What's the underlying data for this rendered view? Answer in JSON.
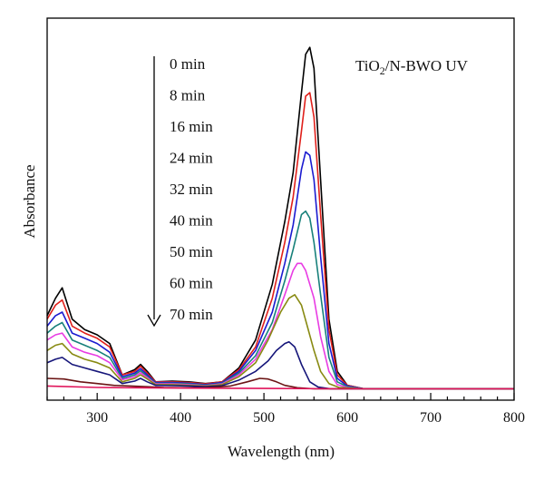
{
  "chart_data": {
    "type": "line",
    "title": "",
    "xlabel": "Wavelength (nm)",
    "ylabel": "Absorbance",
    "xlim": [
      240,
      800
    ],
    "ylim": [
      0,
      1
    ],
    "xticks": [
      300,
      400,
      500,
      600,
      700,
      800
    ],
    "x_minor_step": 20,
    "y_tick_labels": false,
    "grid": false,
    "annotation": {
      "base": "TiO",
      "sub": "2",
      "rest": "/N-BWO UV"
    },
    "legend_position": "top-center, with arrow pointing down",
    "series": [
      {
        "name": "0 min",
        "color": "#000000",
        "values": [
          [
            240,
            0.21
          ],
          [
            250,
            0.26
          ],
          [
            258,
            0.29
          ],
          [
            270,
            0.2
          ],
          [
            285,
            0.17
          ],
          [
            300,
            0.155
          ],
          [
            315,
            0.13
          ],
          [
            330,
            0.04
          ],
          [
            345,
            0.055
          ],
          [
            352,
            0.07
          ],
          [
            360,
            0.05
          ],
          [
            370,
            0.02
          ],
          [
            390,
            0.022
          ],
          [
            410,
            0.02
          ],
          [
            430,
            0.015
          ],
          [
            450,
            0.02
          ],
          [
            470,
            0.06
          ],
          [
            490,
            0.14
          ],
          [
            510,
            0.3
          ],
          [
            525,
            0.48
          ],
          [
            535,
            0.62
          ],
          [
            545,
            0.85
          ],
          [
            550,
            0.96
          ],
          [
            555,
            0.98
          ],
          [
            560,
            0.92
          ],
          [
            568,
            0.6
          ],
          [
            578,
            0.2
          ],
          [
            588,
            0.05
          ],
          [
            600,
            0.01
          ],
          [
            620,
            0.0
          ],
          [
            700,
            0.0
          ],
          [
            800,
            0.0
          ]
        ]
      },
      {
        "name": "8 min",
        "color": "#e0201b",
        "values": [
          [
            240,
            0.2
          ],
          [
            250,
            0.24
          ],
          [
            258,
            0.255
          ],
          [
            270,
            0.18
          ],
          [
            285,
            0.16
          ],
          [
            300,
            0.145
          ],
          [
            315,
            0.12
          ],
          [
            330,
            0.04
          ],
          [
            345,
            0.05
          ],
          [
            352,
            0.065
          ],
          [
            360,
            0.045
          ],
          [
            370,
            0.02
          ],
          [
            390,
            0.02
          ],
          [
            410,
            0.018
          ],
          [
            430,
            0.014
          ],
          [
            450,
            0.02
          ],
          [
            470,
            0.055
          ],
          [
            490,
            0.12
          ],
          [
            510,
            0.26
          ],
          [
            525,
            0.42
          ],
          [
            535,
            0.55
          ],
          [
            545,
            0.74
          ],
          [
            550,
            0.84
          ],
          [
            555,
            0.85
          ],
          [
            560,
            0.78
          ],
          [
            568,
            0.5
          ],
          [
            578,
            0.17
          ],
          [
            588,
            0.04
          ],
          [
            600,
            0.01
          ],
          [
            620,
            0.0
          ],
          [
            700,
            0.0
          ],
          [
            800,
            0.0
          ]
        ]
      },
      {
        "name": "16 min",
        "color": "#1b1bd0",
        "values": [
          [
            240,
            0.18
          ],
          [
            250,
            0.21
          ],
          [
            258,
            0.22
          ],
          [
            270,
            0.16
          ],
          [
            285,
            0.145
          ],
          [
            300,
            0.13
          ],
          [
            315,
            0.105
          ],
          [
            330,
            0.035
          ],
          [
            345,
            0.045
          ],
          [
            352,
            0.058
          ],
          [
            360,
            0.04
          ],
          [
            370,
            0.018
          ],
          [
            390,
            0.018
          ],
          [
            410,
            0.016
          ],
          [
            430,
            0.012
          ],
          [
            450,
            0.018
          ],
          [
            470,
            0.05
          ],
          [
            490,
            0.11
          ],
          [
            510,
            0.22
          ],
          [
            525,
            0.36
          ],
          [
            535,
            0.47
          ],
          [
            545,
            0.63
          ],
          [
            550,
            0.68
          ],
          [
            555,
            0.67
          ],
          [
            560,
            0.6
          ],
          [
            568,
            0.38
          ],
          [
            578,
            0.13
          ],
          [
            588,
            0.03
          ],
          [
            600,
            0.008
          ],
          [
            620,
            0.0
          ],
          [
            700,
            0.0
          ],
          [
            800,
            0.0
          ]
        ]
      },
      {
        "name": "24 min",
        "color": "#17807a",
        "values": [
          [
            240,
            0.16
          ],
          [
            250,
            0.18
          ],
          [
            258,
            0.19
          ],
          [
            270,
            0.14
          ],
          [
            285,
            0.125
          ],
          [
            300,
            0.11
          ],
          [
            315,
            0.09
          ],
          [
            330,
            0.03
          ],
          [
            345,
            0.04
          ],
          [
            352,
            0.052
          ],
          [
            360,
            0.036
          ],
          [
            370,
            0.016
          ],
          [
            390,
            0.016
          ],
          [
            410,
            0.014
          ],
          [
            430,
            0.01
          ],
          [
            450,
            0.016
          ],
          [
            470,
            0.045
          ],
          [
            490,
            0.095
          ],
          [
            510,
            0.19
          ],
          [
            525,
            0.31
          ],
          [
            535,
            0.4
          ],
          [
            545,
            0.5
          ],
          [
            550,
            0.51
          ],
          [
            555,
            0.49
          ],
          [
            560,
            0.42
          ],
          [
            568,
            0.27
          ],
          [
            578,
            0.09
          ],
          [
            588,
            0.02
          ],
          [
            600,
            0.006
          ],
          [
            620,
            0.0
          ],
          [
            700,
            0.0
          ],
          [
            800,
            0.0
          ]
        ]
      },
      {
        "name": "32 min",
        "color": "#e83ce3",
        "values": [
          [
            240,
            0.14
          ],
          [
            250,
            0.155
          ],
          [
            258,
            0.16
          ],
          [
            270,
            0.12
          ],
          [
            285,
            0.105
          ],
          [
            300,
            0.095
          ],
          [
            315,
            0.075
          ],
          [
            330,
            0.026
          ],
          [
            345,
            0.035
          ],
          [
            352,
            0.046
          ],
          [
            360,
            0.032
          ],
          [
            370,
            0.014
          ],
          [
            390,
            0.014
          ],
          [
            410,
            0.012
          ],
          [
            430,
            0.009
          ],
          [
            450,
            0.014
          ],
          [
            470,
            0.04
          ],
          [
            490,
            0.085
          ],
          [
            510,
            0.17
          ],
          [
            525,
            0.27
          ],
          [
            535,
            0.34
          ],
          [
            540,
            0.36
          ],
          [
            545,
            0.36
          ],
          [
            550,
            0.34
          ],
          [
            560,
            0.26
          ],
          [
            568,
            0.15
          ],
          [
            578,
            0.05
          ],
          [
            588,
            0.012
          ],
          [
            600,
            0.004
          ],
          [
            620,
            0.0
          ],
          [
            700,
            0.0
          ],
          [
            800,
            0.0
          ]
        ]
      },
      {
        "name": "40 min",
        "color": "#888a12",
        "values": [
          [
            240,
            0.11
          ],
          [
            250,
            0.125
          ],
          [
            258,
            0.13
          ],
          [
            270,
            0.1
          ],
          [
            285,
            0.085
          ],
          [
            300,
            0.075
          ],
          [
            315,
            0.06
          ],
          [
            330,
            0.02
          ],
          [
            345,
            0.03
          ],
          [
            352,
            0.04
          ],
          [
            360,
            0.028
          ],
          [
            370,
            0.012
          ],
          [
            390,
            0.012
          ],
          [
            410,
            0.01
          ],
          [
            430,
            0.008
          ],
          [
            450,
            0.012
          ],
          [
            470,
            0.035
          ],
          [
            490,
            0.075
          ],
          [
            505,
            0.14
          ],
          [
            520,
            0.22
          ],
          [
            530,
            0.26
          ],
          [
            537,
            0.27
          ],
          [
            545,
            0.24
          ],
          [
            552,
            0.18
          ],
          [
            560,
            0.11
          ],
          [
            568,
            0.05
          ],
          [
            578,
            0.015
          ],
          [
            590,
            0.004
          ],
          [
            620,
            0.0
          ],
          [
            700,
            0.0
          ],
          [
            800,
            0.0
          ]
        ]
      },
      {
        "name": "50 min",
        "color": "#16167a",
        "values": [
          [
            240,
            0.075
          ],
          [
            250,
            0.085
          ],
          [
            258,
            0.09
          ],
          [
            270,
            0.07
          ],
          [
            285,
            0.06
          ],
          [
            300,
            0.05
          ],
          [
            315,
            0.04
          ],
          [
            330,
            0.015
          ],
          [
            345,
            0.022
          ],
          [
            352,
            0.03
          ],
          [
            360,
            0.02
          ],
          [
            370,
            0.01
          ],
          [
            390,
            0.009
          ],
          [
            410,
            0.008
          ],
          [
            430,
            0.006
          ],
          [
            450,
            0.009
          ],
          [
            470,
            0.025
          ],
          [
            490,
            0.05
          ],
          [
            505,
            0.08
          ],
          [
            515,
            0.11
          ],
          [
            525,
            0.13
          ],
          [
            530,
            0.135
          ],
          [
            537,
            0.12
          ],
          [
            545,
            0.07
          ],
          [
            555,
            0.02
          ],
          [
            565,
            0.005
          ],
          [
            580,
            0.0
          ],
          [
            620,
            0.0
          ],
          [
            700,
            0.0
          ],
          [
            800,
            0.0
          ]
        ]
      },
      {
        "name": "60 min",
        "color": "#6b1414",
        "values": [
          [
            240,
            0.03
          ],
          [
            260,
            0.028
          ],
          [
            280,
            0.02
          ],
          [
            300,
            0.015
          ],
          [
            320,
            0.01
          ],
          [
            340,
            0.008
          ],
          [
            360,
            0.006
          ],
          [
            380,
            0.004
          ],
          [
            400,
            0.003
          ],
          [
            430,
            0.003
          ],
          [
            460,
            0.008
          ],
          [
            480,
            0.02
          ],
          [
            495,
            0.03
          ],
          [
            505,
            0.028
          ],
          [
            515,
            0.02
          ],
          [
            525,
            0.01
          ],
          [
            540,
            0.003
          ],
          [
            560,
            0.0
          ],
          [
            620,
            0.0
          ],
          [
            700,
            0.0
          ],
          [
            800,
            0.0
          ]
        ]
      },
      {
        "name": "70 min",
        "color": "#e0145a",
        "values": [
          [
            240,
            0.008
          ],
          [
            300,
            0.004
          ],
          [
            400,
            0.002
          ],
          [
            500,
            0.001
          ],
          [
            600,
            0.0
          ],
          [
            700,
            0.0
          ],
          [
            800,
            0.0
          ]
        ]
      }
    ]
  }
}
